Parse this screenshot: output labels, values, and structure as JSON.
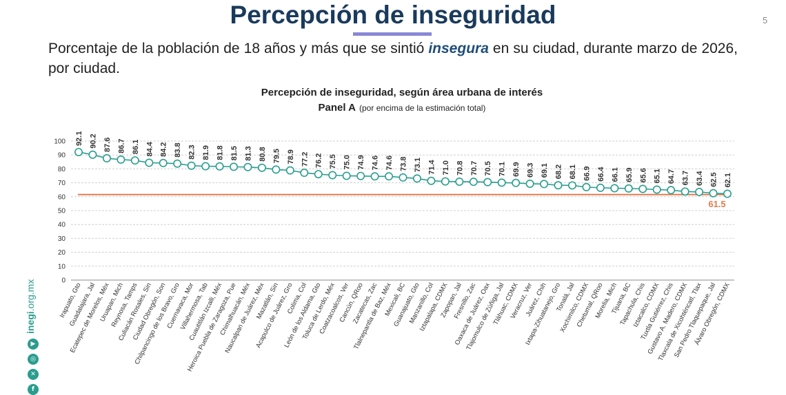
{
  "page": {
    "title": "Percepción de inseguridad",
    "page_number": "5",
    "description_before": "Porcentaje de la población de 18 años y más que se sintió ",
    "description_highlight": "insegura",
    "description_after": " en su ciudad, durante marzo de 2026, por ciudad.",
    "brand_text_bold": "inegi",
    "brand_text_rest": ".org.mx",
    "social_icons": [
      "youtube-icon",
      "instagram-icon",
      "x-icon",
      "facebook-icon"
    ],
    "colors": {
      "title": "#1a3a5c",
      "accent": "#8a88d6",
      "series": "#2a9d8f",
      "reference": "#e07b4f"
    }
  },
  "chart_data": {
    "type": "line",
    "title": "Percepción de inseguridad, según área urbana de interés",
    "subtitle_bold": "Panel A",
    "subtitle_rest": "(por encima de la estimación total)",
    "ylim": [
      0,
      100
    ],
    "yticks": [
      0,
      10,
      20,
      30,
      40,
      50,
      60,
      70,
      80,
      90,
      100
    ],
    "grid": true,
    "categories": [
      "Irapuato, Gto",
      "Guadalajara, Jal",
      "Ecatepec de Morelos, Méx",
      "Uruapan, Mich",
      "Reynosa, Tamps",
      "Culiacán Rosales, Sin",
      "Ciudad Obregón, Son",
      "Chilpancingo de los Bravo, Gro",
      "Cuernavaca, Mor",
      "Villahermosa, Tab",
      "Cuautitlán Izcalli, Méx",
      "Heroica Puebla de Zaragoza, Pue",
      "Chimalhuacán, Méx",
      "Naucalpan de Juárez, Méx",
      "Mazatlán, Sin",
      "Acapulco de Juárez, Gro",
      "Colima, Col",
      "León de los Aldama, Gto",
      "Toluca de Lerdo, Méx",
      "Coatzacoalcos, Ver",
      "Cancún, QRoo",
      "Zacatecas, Zac",
      "Tlalnepantla de Baz, Méx",
      "Mexicali, BC",
      "Guanajuato, Gto",
      "Manzanillo, Col",
      "Iztapalapa, CDMX",
      "Zapopan, Jal",
      "Fresnillo, Zac",
      "Oaxaca de Juárez, Oax",
      "Tlajomulco de Zúñiga, Jal",
      "Tláhuac, CDMX",
      "Veracruz, Ver",
      "Juárez, Chih",
      "Ixtapa-Zihuatanejo, Gro",
      "Tonalá, Jal",
      "Xochimilco, CDMX",
      "Chetumal, QRoo",
      "Morelia, Mich",
      "Tijuana, BC",
      "Tapachula, Chis",
      "Iztacalco, CDMX",
      "Tuxtla Gutiérrez, Chis",
      "Gustavo A. Madero, CDMX",
      "Tlaxcala de Xicohténcatl, Tlax",
      "San Pedro Tlaquepaque, Jal",
      "Álvaro Obregón, CDMX"
    ],
    "values": [
      92.1,
      90.2,
      87.6,
      86.7,
      86.1,
      84.4,
      84.2,
      83.8,
      82.3,
      81.9,
      81.8,
      81.5,
      81.3,
      80.8,
      79.5,
      78.9,
      77.2,
      76.2,
      75.5,
      75.0,
      74.9,
      74.6,
      74.6,
      73.8,
      73.1,
      71.4,
      71.0,
      70.8,
      70.7,
      70.5,
      70.1,
      69.9,
      69.3,
      69.1,
      68.2,
      68.1,
      66.9,
      66.4,
      66.1,
      65.9,
      65.6,
      65.1,
      64.7,
      63.7,
      63.4,
      62.5,
      62.1
    ],
    "value_labels": [
      "92.1",
      "90.2",
      "87.6",
      "86.7",
      "86.1",
      "84.4",
      "84.2",
      "83.8",
      "82.3",
      "81.9",
      "81.8",
      "81.5",
      "81.3",
      "80.8",
      "79.5",
      "78.9",
      "77.2",
      "76.2",
      "75.5",
      "75.0",
      "74.9",
      "74.6",
      "74.6",
      "73.8",
      "73.1",
      "71.4",
      "71.0",
      "70.8",
      "70.7",
      "70.5",
      "70.1",
      "69.9",
      "69.3",
      "69.1",
      "68.2",
      "68.1",
      "66.9",
      "66.4",
      "66.1",
      "65.9",
      "65.6",
      "65.1",
      "64.7",
      "63.7",
      "63.4",
      "62.5",
      "62.1"
    ],
    "reference_value": 61.5,
    "reference_label": "61.5"
  }
}
